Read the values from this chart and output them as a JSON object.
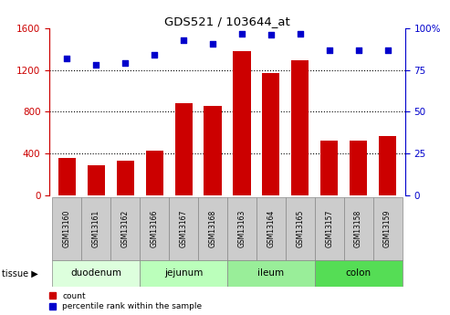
{
  "title": "GDS521 / 103644_at",
  "samples": [
    "GSM13160",
    "GSM13161",
    "GSM13162",
    "GSM13166",
    "GSM13167",
    "GSM13168",
    "GSM13163",
    "GSM13164",
    "GSM13165",
    "GSM13157",
    "GSM13158",
    "GSM13159"
  ],
  "counts": [
    360,
    290,
    330,
    430,
    880,
    860,
    1380,
    1170,
    1290,
    520,
    520,
    570
  ],
  "percentiles": [
    82,
    78,
    79,
    84,
    93,
    91,
    97,
    96,
    97,
    87,
    87,
    87
  ],
  "tissues": [
    {
      "label": "duodenum",
      "start": 0,
      "end": 3,
      "color": "#ddffdd"
    },
    {
      "label": "jejunum",
      "start": 3,
      "end": 6,
      "color": "#bbffbb"
    },
    {
      "label": "ileum",
      "start": 6,
      "end": 9,
      "color": "#99ee99"
    },
    {
      "label": "colon",
      "start": 9,
      "end": 12,
      "color": "#55dd55"
    }
  ],
  "bar_color": "#cc0000",
  "dot_color": "#0000cc",
  "ylim_left": [
    0,
    1600
  ],
  "ylim_right": [
    0,
    100
  ],
  "yticks_left": [
    0,
    400,
    800,
    1200,
    1600
  ],
  "yticks_right": [
    0,
    25,
    50,
    75,
    100
  ],
  "background_color": "#ffffff",
  "plot_bg_color": "#ffffff",
  "sample_box_color": "#cccccc",
  "sample_box_edge": "#888888"
}
